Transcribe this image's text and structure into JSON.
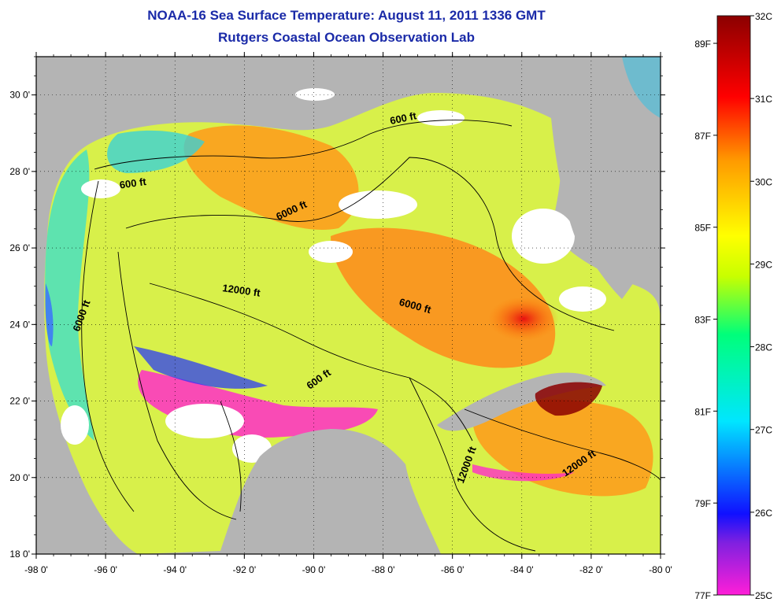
{
  "title_line1": "NOAA-16 Sea Surface Temperature:  August 11, 2011 1336 GMT",
  "title_line2": "Rutgers Coastal Ocean Observation Lab",
  "map": {
    "lon_range": [
      -98,
      -80
    ],
    "lat_range": [
      18,
      31
    ],
    "lon_ticks": [
      "-98 0'",
      "-96 0'",
      "-94 0'",
      "-92 0'",
      "-90 0'",
      "-88 0'",
      "-86 0'",
      "-84 0'",
      "-82 0'",
      "-80 0'"
    ],
    "lat_ticks": [
      "18 0'",
      "20 0'",
      "22 0'",
      "24 0'",
      "26 0'",
      "28 0'",
      "30 0'"
    ],
    "land_color": "#b4b4b4",
    "contour_labels": [
      {
        "text": "600 ft",
        "lon": -95.2,
        "lat": 27.6,
        "angle": -8
      },
      {
        "text": "600 ft",
        "lon": -87.4,
        "lat": 29.3,
        "angle": -12
      },
      {
        "text": "6000 ft",
        "lon": -90.6,
        "lat": 26.9,
        "angle": -25
      },
      {
        "text": "12000 ft",
        "lon": -92.1,
        "lat": 24.8,
        "angle": 8
      },
      {
        "text": "6000 ft",
        "lon": -87.1,
        "lat": 24.4,
        "angle": 15
      },
      {
        "text": "6000 ft",
        "lon": -96.6,
        "lat": 24.2,
        "angle": -70
      },
      {
        "text": "600 ft",
        "lon": -89.8,
        "lat": 22.5,
        "angle": -35
      },
      {
        "text": "12000 ft",
        "lon": -85.5,
        "lat": 20.3,
        "angle": -70
      },
      {
        "text": "12000 ft",
        "lon": -82.3,
        "lat": 20.3,
        "angle": -35
      }
    ]
  },
  "colorbar": {
    "min_c": 25,
    "max_c": 32,
    "celsius_labels": [
      "32C",
      "31C",
      "30C",
      "29C",
      "28C",
      "27C",
      "26C",
      "25C"
    ],
    "fahrenheit_labels": [
      "89F",
      "87F",
      "85F",
      "83F",
      "81F",
      "79F",
      "77F"
    ],
    "colors": [
      "#ff1ed8",
      "#1010ff",
      "#00e6ff",
      "#00ff7a",
      "#ffff00",
      "#ff9a00",
      "#ff0000",
      "#8b0000"
    ]
  }
}
